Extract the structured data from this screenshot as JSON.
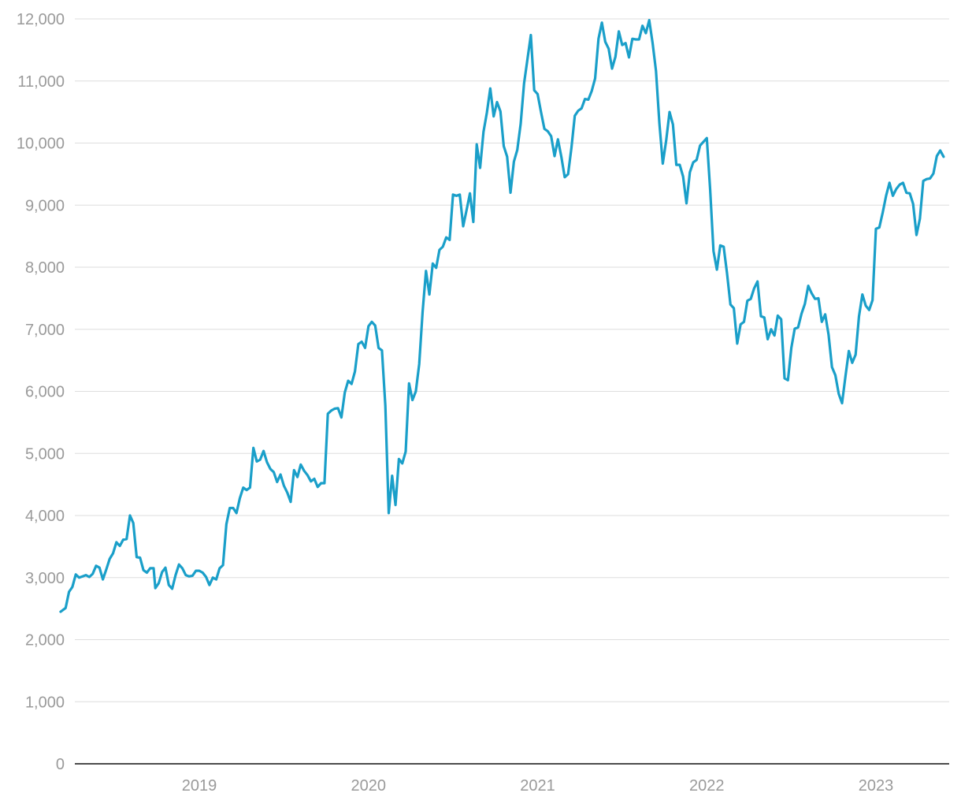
{
  "chart_data": {
    "type": "line",
    "title": "",
    "xlabel": "",
    "ylabel": "",
    "ylim": [
      0,
      12000
    ],
    "yticks": [
      0,
      1000,
      2000,
      3000,
      4000,
      5000,
      6000,
      7000,
      8000,
      9000,
      10000,
      11000,
      12000
    ],
    "ytick_labels": [
      "0",
      "1,000",
      "2,000",
      "3,000",
      "4,000",
      "5,000",
      "6,000",
      "7,000",
      "8,000",
      "9,000",
      "10,000",
      "11,000",
      "12,000"
    ],
    "xlim": [
      2018.1,
      2023.25
    ],
    "xticks": [
      2019,
      2020,
      2021,
      2022,
      2023
    ],
    "xtick_labels": [
      "2019",
      "2020",
      "2021",
      "2022",
      "2023"
    ],
    "grid": true,
    "legend": "none",
    "color": "#1a9fc9",
    "points": [
      [
        2018.18,
        2450
      ],
      [
        2018.21,
        2510
      ],
      [
        2018.23,
        2770
      ],
      [
        2018.25,
        2850
      ],
      [
        2018.27,
        3050
      ],
      [
        2018.29,
        3000
      ],
      [
        2018.31,
        3020
      ],
      [
        2018.33,
        3040
      ],
      [
        2018.35,
        3010
      ],
      [
        2018.37,
        3060
      ],
      [
        2018.39,
        3190
      ],
      [
        2018.41,
        3160
      ],
      [
        2018.43,
        2970
      ],
      [
        2018.45,
        3130
      ],
      [
        2018.47,
        3300
      ],
      [
        2018.49,
        3390
      ],
      [
        2018.51,
        3570
      ],
      [
        2018.53,
        3510
      ],
      [
        2018.55,
        3610
      ],
      [
        2018.57,
        3620
      ],
      [
        2018.59,
        4000
      ],
      [
        2018.61,
        3880
      ],
      [
        2018.63,
        3330
      ],
      [
        2018.65,
        3320
      ],
      [
        2018.67,
        3120
      ],
      [
        2018.69,
        3080
      ],
      [
        2018.71,
        3150
      ],
      [
        2018.73,
        3150
      ],
      [
        2018.74,
        2830
      ],
      [
        2018.76,
        2910
      ],
      [
        2018.78,
        3090
      ],
      [
        2018.8,
        3160
      ],
      [
        2018.82,
        2880
      ],
      [
        2018.84,
        2820
      ],
      [
        2018.86,
        3040
      ],
      [
        2018.88,
        3210
      ],
      [
        2018.9,
        3150
      ],
      [
        2018.92,
        3040
      ],
      [
        2018.94,
        3020
      ],
      [
        2018.96,
        3030
      ],
      [
        2018.98,
        3110
      ],
      [
        2019.0,
        3110
      ],
      [
        2019.02,
        3080
      ],
      [
        2019.04,
        3010
      ],
      [
        2019.06,
        2880
      ],
      [
        2019.08,
        3000
      ],
      [
        2019.1,
        2970
      ],
      [
        2019.12,
        3150
      ],
      [
        2019.14,
        3200
      ],
      [
        2019.16,
        3860
      ],
      [
        2019.18,
        4120
      ],
      [
        2019.2,
        4120
      ],
      [
        2019.22,
        4040
      ],
      [
        2019.24,
        4280
      ],
      [
        2019.26,
        4450
      ],
      [
        2019.28,
        4410
      ],
      [
        2019.3,
        4450
      ],
      [
        2019.32,
        5090
      ],
      [
        2019.34,
        4870
      ],
      [
        2019.36,
        4900
      ],
      [
        2019.38,
        5040
      ],
      [
        2019.4,
        4860
      ],
      [
        2019.42,
        4750
      ],
      [
        2019.44,
        4700
      ],
      [
        2019.46,
        4540
      ],
      [
        2019.48,
        4660
      ],
      [
        2019.5,
        4480
      ],
      [
        2019.52,
        4370
      ],
      [
        2019.54,
        4220
      ],
      [
        2019.56,
        4730
      ],
      [
        2019.58,
        4620
      ],
      [
        2019.6,
        4820
      ],
      [
        2019.62,
        4720
      ],
      [
        2019.64,
        4650
      ],
      [
        2019.66,
        4550
      ],
      [
        2019.68,
        4590
      ],
      [
        2019.7,
        4460
      ],
      [
        2019.72,
        4520
      ],
      [
        2019.74,
        4520
      ],
      [
        2019.76,
        5640
      ],
      [
        2019.78,
        5690
      ],
      [
        2019.8,
        5720
      ],
      [
        2019.82,
        5730
      ],
      [
        2019.84,
        5580
      ],
      [
        2019.86,
        5980
      ],
      [
        2019.88,
        6170
      ],
      [
        2019.9,
        6120
      ],
      [
        2019.92,
        6320
      ],
      [
        2019.94,
        6760
      ],
      [
        2019.96,
        6800
      ],
      [
        2019.98,
        6700
      ],
      [
        2020.0,
        7050
      ],
      [
        2020.02,
        7120
      ],
      [
        2020.04,
        7060
      ],
      [
        2020.06,
        6700
      ],
      [
        2020.08,
        6660
      ],
      [
        2020.1,
        5770
      ],
      [
        2020.12,
        4040
      ],
      [
        2020.14,
        4640
      ],
      [
        2020.16,
        4170
      ],
      [
        2020.18,
        4910
      ],
      [
        2020.2,
        4840
      ],
      [
        2020.22,
        5030
      ],
      [
        2020.24,
        6130
      ],
      [
        2020.26,
        5860
      ],
      [
        2020.28,
        6000
      ],
      [
        2020.3,
        6440
      ],
      [
        2020.32,
        7280
      ],
      [
        2020.34,
        7940
      ],
      [
        2020.36,
        7560
      ],
      [
        2020.38,
        8060
      ],
      [
        2020.4,
        7990
      ],
      [
        2020.42,
        8280
      ],
      [
        2020.44,
        8330
      ],
      [
        2020.46,
        8480
      ],
      [
        2020.48,
        8440
      ],
      [
        2020.5,
        9170
      ],
      [
        2020.52,
        9150
      ],
      [
        2020.54,
        9170
      ],
      [
        2020.56,
        8660
      ],
      [
        2020.58,
        8920
      ],
      [
        2020.6,
        9190
      ],
      [
        2020.62,
        8730
      ],
      [
        2020.64,
        9980
      ],
      [
        2020.66,
        9600
      ],
      [
        2020.68,
        10180
      ],
      [
        2020.7,
        10490
      ],
      [
        2020.72,
        10880
      ],
      [
        2020.74,
        10430
      ],
      [
        2020.76,
        10660
      ],
      [
        2020.78,
        10510
      ],
      [
        2020.8,
        9950
      ],
      [
        2020.82,
        9780
      ],
      [
        2020.84,
        9200
      ],
      [
        2020.86,
        9700
      ],
      [
        2020.88,
        9890
      ],
      [
        2020.9,
        10310
      ],
      [
        2020.92,
        10960
      ],
      [
        2020.94,
        11350
      ],
      [
        2020.96,
        11740
      ],
      [
        2020.98,
        10850
      ],
      [
        2021.0,
        10790
      ],
      [
        2021.02,
        10500
      ],
      [
        2021.04,
        10230
      ],
      [
        2021.06,
        10190
      ],
      [
        2021.08,
        10110
      ],
      [
        2021.1,
        9790
      ],
      [
        2021.12,
        10060
      ],
      [
        2021.14,
        9780
      ],
      [
        2021.16,
        9450
      ],
      [
        2021.18,
        9500
      ],
      [
        2021.2,
        9930
      ],
      [
        2021.22,
        10440
      ],
      [
        2021.24,
        10520
      ],
      [
        2021.26,
        10560
      ],
      [
        2021.28,
        10710
      ],
      [
        2021.3,
        10700
      ],
      [
        2021.32,
        10840
      ],
      [
        2021.34,
        11040
      ],
      [
        2021.36,
        11680
      ],
      [
        2021.38,
        11940
      ],
      [
        2021.4,
        11630
      ],
      [
        2021.42,
        11520
      ],
      [
        2021.44,
        11200
      ],
      [
        2021.46,
        11390
      ],
      [
        2021.48,
        11800
      ],
      [
        2021.5,
        11580
      ],
      [
        2021.52,
        11610
      ],
      [
        2021.54,
        11380
      ],
      [
        2021.56,
        11680
      ],
      [
        2021.58,
        11670
      ],
      [
        2021.6,
        11670
      ],
      [
        2021.62,
        11890
      ],
      [
        2021.64,
        11770
      ],
      [
        2021.66,
        11980
      ],
      [
        2021.68,
        11610
      ],
      [
        2021.7,
        11160
      ],
      [
        2021.72,
        10320
      ],
      [
        2021.74,
        9670
      ],
      [
        2021.76,
        10040
      ],
      [
        2021.78,
        10500
      ],
      [
        2021.8,
        10300
      ],
      [
        2021.82,
        9650
      ],
      [
        2021.84,
        9650
      ],
      [
        2021.86,
        9460
      ],
      [
        2021.88,
        9030
      ],
      [
        2021.9,
        9530
      ],
      [
        2021.92,
        9690
      ],
      [
        2021.94,
        9730
      ],
      [
        2021.96,
        9960
      ],
      [
        2021.98,
        10020
      ],
      [
        2022.0,
        10080
      ],
      [
        2022.02,
        9260
      ],
      [
        2022.04,
        8260
      ],
      [
        2022.06,
        7960
      ],
      [
        2022.08,
        8350
      ],
      [
        2022.1,
        8330
      ],
      [
        2022.12,
        7900
      ],
      [
        2022.14,
        7400
      ],
      [
        2022.16,
        7340
      ],
      [
        2022.18,
        6770
      ],
      [
        2022.2,
        7080
      ],
      [
        2022.22,
        7120
      ],
      [
        2022.24,
        7460
      ],
      [
        2022.26,
        7490
      ],
      [
        2022.28,
        7660
      ],
      [
        2022.3,
        7770
      ],
      [
        2022.32,
        7210
      ],
      [
        2022.34,
        7190
      ],
      [
        2022.36,
        6840
      ],
      [
        2022.38,
        7000
      ],
      [
        2022.4,
        6900
      ],
      [
        2022.42,
        7220
      ],
      [
        2022.44,
        7160
      ],
      [
        2022.46,
        6210
      ],
      [
        2022.48,
        6180
      ],
      [
        2022.5,
        6700
      ],
      [
        2022.52,
        7010
      ],
      [
        2022.54,
        7030
      ],
      [
        2022.56,
        7250
      ],
      [
        2022.58,
        7410
      ],
      [
        2022.6,
        7700
      ],
      [
        2022.62,
        7580
      ],
      [
        2022.64,
        7490
      ],
      [
        2022.66,
        7500
      ],
      [
        2022.68,
        7120
      ],
      [
        2022.7,
        7240
      ],
      [
        2022.72,
        6910
      ],
      [
        2022.74,
        6390
      ],
      [
        2022.76,
        6260
      ],
      [
        2022.78,
        5960
      ],
      [
        2022.8,
        5810
      ],
      [
        2022.82,
        6240
      ],
      [
        2022.84,
        6650
      ],
      [
        2022.86,
        6460
      ],
      [
        2022.88,
        6590
      ],
      [
        2022.9,
        7210
      ],
      [
        2022.92,
        7560
      ],
      [
        2022.94,
        7380
      ],
      [
        2022.96,
        7310
      ],
      [
        2022.98,
        7470
      ],
      [
        2023.0,
        8620
      ],
      [
        2023.02,
        8640
      ],
      [
        2023.04,
        8880
      ],
      [
        2023.06,
        9150
      ],
      [
        2023.08,
        9360
      ],
      [
        2023.1,
        9150
      ],
      [
        2023.12,
        9260
      ],
      [
        2023.14,
        9330
      ],
      [
        2023.16,
        9360
      ],
      [
        2023.18,
        9200
      ],
      [
        2023.2,
        9190
      ],
      [
        2023.22,
        9020
      ],
      [
        2023.24,
        8520
      ],
      [
        2023.26,
        8780
      ],
      [
        2023.28,
        9390
      ],
      [
        2023.3,
        9420
      ],
      [
        2023.32,
        9430
      ],
      [
        2023.34,
        9510
      ],
      [
        2023.36,
        9790
      ],
      [
        2023.38,
        9880
      ],
      [
        2023.4,
        9780
      ]
    ]
  }
}
